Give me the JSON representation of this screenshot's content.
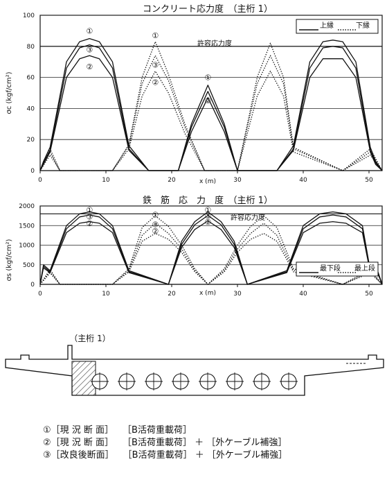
{
  "chart_data": [
    {
      "type": "line",
      "title": "コンクリート応力度　（主桁 1）",
      "xlabel": "x (m)",
      "ylabel": "σc (kgf/cm²)",
      "xlim": [
        0,
        52
      ],
      "ylim": [
        0,
        100
      ],
      "x_ticks": [
        "0",
        "10",
        "20",
        "30",
        "40",
        "50"
      ],
      "y_ticks": [
        "0",
        "20",
        "40",
        "60",
        "80",
        "100"
      ],
      "grid": true,
      "limit_label": "許容応力度",
      "limit_value": 80,
      "legend": [
        {
          "label": "上縁",
          "style": "solid"
        },
        {
          "label": "下縁",
          "style": "dotted"
        }
      ],
      "markers": [
        "①",
        "③",
        "②",
        "①",
        "③",
        "②",
        "①",
        "②"
      ],
      "series": [
        {
          "name": "上縁",
          "style": "solid",
          "case": "①",
          "x": [
            0,
            0.5,
            1.5,
            4,
            6,
            7.5,
            9,
            11,
            13.5,
            16.5,
            19,
            21,
            23,
            25.5,
            28,
            30,
            31.5,
            34,
            36,
            38.5,
            41,
            43,
            44.5,
            46,
            48,
            50.2,
            51,
            52
          ],
          "y": [
            0,
            6,
            15,
            70,
            83,
            85,
            83,
            70,
            16,
            0,
            0,
            0,
            30,
            55,
            30,
            0,
            0,
            0,
            0,
            16,
            70,
            83,
            84,
            83,
            70,
            15,
            6,
            0
          ]
        },
        {
          "name": "上縁",
          "style": "solid",
          "case": "③",
          "x": [
            0,
            0.5,
            1.5,
            4,
            6,
            7.5,
            9,
            11,
            13.5,
            16.5,
            19,
            21,
            23,
            25.5,
            28,
            30,
            31.5,
            34,
            36,
            38.5,
            41,
            43,
            44.5,
            46,
            48,
            50.2,
            51,
            52
          ],
          "y": [
            0,
            5,
            13,
            66,
            79,
            81,
            79,
            66,
            14,
            0,
            0,
            0,
            28,
            51,
            28,
            0,
            0,
            0,
            0,
            14,
            66,
            79,
            80,
            79,
            66,
            13,
            5,
            0
          ]
        },
        {
          "name": "上縁",
          "style": "solid",
          "case": "②",
          "x": [
            0,
            0.5,
            1.5,
            4,
            6,
            7.5,
            9,
            11,
            13.5,
            16.5,
            19,
            21,
            23,
            25.5,
            28,
            30,
            31.5,
            34,
            36,
            38.5,
            41,
            43,
            44.5,
            46,
            48,
            50.2,
            51,
            52
          ],
          "y": [
            0,
            4,
            12,
            60,
            72,
            74,
            72,
            60,
            13,
            0,
            0,
            0,
            25,
            47,
            25,
            0,
            0,
            0,
            0,
            13,
            60,
            72,
            72,
            72,
            60,
            12,
            4,
            0
          ]
        },
        {
          "name": "下縁",
          "style": "dotted",
          "case": "①",
          "x": [
            0,
            1.5,
            3,
            11,
            13.5,
            15.5,
            17.5,
            19.5,
            22,
            25,
            26,
            28,
            30,
            31.5,
            33,
            35,
            37,
            38.5,
            46,
            50.2,
            52
          ],
          "y": [
            0,
            14,
            0,
            0,
            17,
            60,
            83,
            62,
            30,
            0,
            0,
            0,
            0,
            30,
            60,
            82,
            60,
            15,
            0,
            14,
            0
          ]
        },
        {
          "name": "下縁",
          "style": "dotted",
          "case": "③",
          "x": [
            0,
            1.5,
            3,
            11,
            13.5,
            15.5,
            17.5,
            19.5,
            22,
            25,
            26,
            28,
            30,
            31.5,
            33,
            35,
            37,
            38.5,
            46,
            50.2,
            52
          ],
          "y": [
            0,
            12,
            0,
            0,
            16,
            56,
            74,
            58,
            28,
            0,
            0,
            0,
            0,
            28,
            56,
            74,
            56,
            14,
            0,
            12,
            0
          ]
        },
        {
          "name": "下縁",
          "style": "dotted",
          "case": "②",
          "x": [
            0,
            1.5,
            3,
            11,
            13.5,
            15.5,
            17.5,
            19.5,
            22,
            25,
            26,
            28,
            30,
            31.5,
            33,
            35,
            37,
            38.5,
            46,
            50.2,
            52
          ],
          "y": [
            0,
            10,
            0,
            0,
            14,
            48,
            64,
            50,
            24,
            0,
            0,
            0,
            0,
            24,
            48,
            64,
            48,
            12,
            0,
            10,
            0
          ]
        }
      ]
    },
    {
      "type": "line",
      "title": "鉄　筋　応　力　度　（主桁 1）",
      "xlabel": "x (m)",
      "ylabel": "σs (kgf/cm²)",
      "xlim": [
        0,
        52
      ],
      "ylim": [
        0,
        2000
      ],
      "x_ticks": [
        "0",
        "10",
        "20",
        "30",
        "40",
        "50"
      ],
      "y_ticks": [
        "0",
        "500",
        "1000",
        "1500",
        "2000"
      ],
      "grid": true,
      "limit_label": "許容応力度",
      "limit_value": 1800,
      "legend": [
        {
          "label": "最下段",
          "style": "solid"
        },
        {
          "label": "最上段",
          "style": "dotted"
        }
      ],
      "markers": [
        "①",
        "③",
        "②",
        "①",
        "③",
        "②",
        "①",
        "③",
        "②"
      ],
      "series": [
        {
          "name": "最下段",
          "style": "solid",
          "case": "①",
          "x": [
            0,
            0.5,
            1.5,
            4,
            6,
            7.5,
            9,
            11,
            13.5,
            19.5,
            21.5,
            23.5,
            25.5,
            27.5,
            29.5,
            31.5,
            37.5,
            40,
            42.5,
            44.5,
            46.5,
            49,
            50.2,
            51,
            52
          ],
          "y": [
            0,
            500,
            350,
            1500,
            1800,
            1850,
            1800,
            1500,
            350,
            0,
            1100,
            1600,
            1850,
            1600,
            1100,
            0,
            350,
            1500,
            1800,
            1850,
            1800,
            1500,
            350,
            500,
            0
          ]
        },
        {
          "name": "最下段",
          "style": "solid",
          "case": "③",
          "x": [
            0,
            0.5,
            1.5,
            4,
            6,
            7.5,
            9,
            11,
            13.5,
            19.5,
            21.5,
            23.5,
            25.5,
            27.5,
            29.5,
            31.5,
            37.5,
            40,
            42.5,
            44.5,
            46.5,
            49,
            50.2,
            51,
            52
          ],
          "y": [
            0,
            460,
            320,
            1420,
            1720,
            1770,
            1720,
            1420,
            320,
            0,
            1020,
            1520,
            1760,
            1520,
            1020,
            0,
            320,
            1420,
            1720,
            1770,
            1720,
            1420,
            320,
            460,
            0
          ]
        },
        {
          "name": "最下段",
          "style": "solid",
          "case": "②",
          "x": [
            0,
            0.5,
            1.5,
            4,
            6,
            7.5,
            9,
            11,
            13.5,
            19.5,
            21.5,
            23.5,
            25.5,
            27.5,
            29.5,
            31.5,
            37.5,
            40,
            42.5,
            44.5,
            46.5,
            49,
            50.2,
            51,
            52
          ],
          "y": [
            0,
            420,
            300,
            1320,
            1560,
            1600,
            1560,
            1320,
            300,
            0,
            940,
            1400,
            1620,
            1400,
            940,
            0,
            300,
            1320,
            1560,
            1600,
            1560,
            1320,
            300,
            420,
            0
          ]
        },
        {
          "name": "最上段",
          "style": "dotted",
          "case": "①",
          "x": [
            0,
            1.5,
            3,
            11,
            13.5,
            15.5,
            17.5,
            19.5,
            21.5,
            23.5,
            25.5,
            28,
            30,
            32,
            34,
            36,
            38.5,
            46,
            50.2,
            52
          ],
          "y": [
            0,
            380,
            0,
            0,
            400,
            1450,
            1750,
            1480,
            1000,
            400,
            0,
            400,
            1000,
            1480,
            1750,
            1450,
            400,
            0,
            380,
            0
          ]
        },
        {
          "name": "最上段",
          "style": "dotted",
          "case": "③",
          "x": [
            0,
            1.5,
            3,
            11,
            13.5,
            15.5,
            17.5,
            19.5,
            21.5,
            23.5,
            25.5,
            28,
            30,
            32,
            34,
            36,
            38.5,
            46,
            50.2,
            52
          ],
          "y": [
            0,
            330,
            0,
            0,
            360,
            1250,
            1560,
            1300,
            900,
            360,
            0,
            360,
            900,
            1300,
            1560,
            1250,
            360,
            0,
            330,
            0
          ]
        },
        {
          "name": "最上段",
          "style": "dotted",
          "case": "②",
          "x": [
            0,
            1.5,
            3,
            11,
            13.5,
            15.5,
            17.5,
            19.5,
            21.5,
            23.5,
            25.5,
            28,
            30,
            32,
            34,
            36,
            38.5,
            46,
            50.2,
            52
          ],
          "y": [
            0,
            290,
            0,
            0,
            320,
            1100,
            1300,
            1150,
            820,
            320,
            0,
            320,
            820,
            1150,
            1300,
            1100,
            320,
            0,
            290,
            0
          ]
        }
      ]
    }
  ],
  "cross_section": {
    "label": "（主桁 1）",
    "circles": 8
  },
  "captions": [
    {
      "num": "①",
      "text": "［現 況 断 面］　　［B活荷重載荷］"
    },
    {
      "num": "②",
      "text": "［現 況 断 面］　　［B活荷重載荷］ ＋ ［外ケーブル補強］"
    },
    {
      "num": "③",
      "text": "［改良後断面］　　［B活荷重載荷］ ＋ ［外ケーブル補強］"
    }
  ],
  "colors": {
    "ink": "#111111",
    "grid": "#222222",
    "hatch": "#333333"
  }
}
